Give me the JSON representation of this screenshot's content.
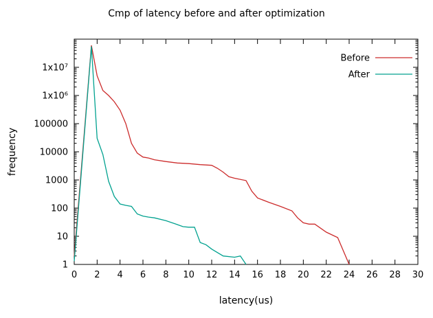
{
  "chart_data": {
    "type": "line",
    "title": "Cmp of latency before and after optimization",
    "xlabel": "latency(us)",
    "ylabel": "frequency",
    "xlim": [
      0,
      30
    ],
    "ylim": [
      1,
      100000000
    ],
    "y_scale": "log",
    "grid": false,
    "legend_position": "top-right",
    "x_ticks": [
      0,
      2,
      4,
      6,
      8,
      10,
      12,
      14,
      16,
      18,
      20,
      22,
      24,
      26,
      28,
      30
    ],
    "y_ticks": [
      {
        "value": 1,
        "label": "1"
      },
      {
        "value": 10,
        "label": "10"
      },
      {
        "value": 100,
        "label": "100"
      },
      {
        "value": 1000,
        "label": "1000"
      },
      {
        "value": 10000,
        "label": "10000"
      },
      {
        "value": 100000,
        "label": "100000"
      },
      {
        "value": 1000000,
        "label": "1x10⁶"
      },
      {
        "value": 10000000,
        "label": "1x10⁷"
      }
    ],
    "series": [
      {
        "name": "Before",
        "color": "#cc2b2b",
        "points": [
          [
            0,
            2
          ],
          [
            1.5,
            60000000
          ],
          [
            2,
            5000000
          ],
          [
            2.5,
            1500000
          ],
          [
            3,
            1000000
          ],
          [
            3.5,
            600000
          ],
          [
            4,
            300000
          ],
          [
            4.5,
            100000
          ],
          [
            5,
            20000
          ],
          [
            5.5,
            9000
          ],
          [
            6,
            6500
          ],
          [
            6.5,
            6000
          ],
          [
            7,
            5200
          ],
          [
            8,
            4500
          ],
          [
            9,
            4000
          ],
          [
            10,
            3800
          ],
          [
            11,
            3500
          ],
          [
            12,
            3300
          ],
          [
            12.5,
            2600
          ],
          [
            13,
            1900
          ],
          [
            13.5,
            1300
          ],
          [
            14,
            1150
          ],
          [
            15,
            950
          ],
          [
            15.5,
            400
          ],
          [
            16,
            230
          ],
          [
            17,
            160
          ],
          [
            18,
            115
          ],
          [
            19,
            80
          ],
          [
            19.5,
            45
          ],
          [
            20,
            30
          ],
          [
            20.5,
            27
          ],
          [
            21,
            27
          ],
          [
            22,
            14
          ],
          [
            23,
            9
          ],
          [
            24,
            1
          ]
        ]
      },
      {
        "name": "After",
        "color": "#00a18f",
        "points": [
          [
            0,
            1.3
          ],
          [
            1.5,
            55000000
          ],
          [
            2,
            30000
          ],
          [
            2.5,
            8000
          ],
          [
            3,
            900
          ],
          [
            3.5,
            260
          ],
          [
            4,
            140
          ],
          [
            4.5,
            125
          ],
          [
            5,
            115
          ],
          [
            5.5,
            62
          ],
          [
            6,
            52
          ],
          [
            6.5,
            48
          ],
          [
            7,
            45
          ],
          [
            8,
            36
          ],
          [
            9,
            26
          ],
          [
            9.5,
            22
          ],
          [
            10,
            21
          ],
          [
            10.5,
            21
          ],
          [
            11,
            6
          ],
          [
            11.5,
            5
          ],
          [
            12,
            3.5
          ],
          [
            13,
            2
          ],
          [
            14,
            1.8
          ],
          [
            14.5,
            2
          ],
          [
            15,
            1
          ]
        ]
      }
    ]
  }
}
